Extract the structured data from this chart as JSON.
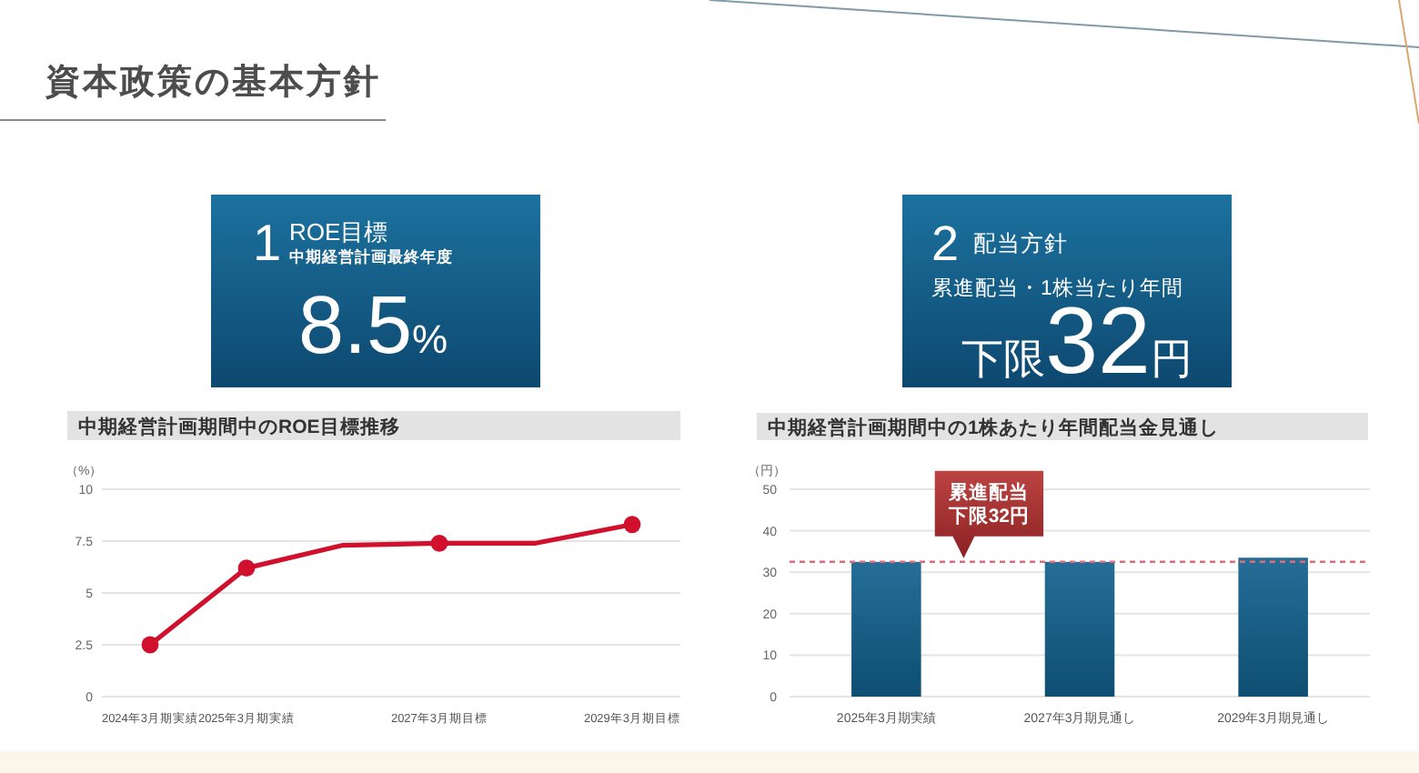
{
  "chart_data": [
    {
      "type": "other",
      "title": "資本政策の基本方針"
    },
    {
      "type": "other",
      "title": "ROE目標",
      "subtitle": "中期経営計画最終年度",
      "annotations": [
        "1",
        "8.5%"
      ]
    },
    {
      "type": "other",
      "title": "配当方針",
      "subtitle": "累進配当・1株当たり年間",
      "annotations": [
        "2",
        "下限32円"
      ]
    },
    {
      "type": "line",
      "title": "中期経営計画期間中のROE目標推移",
      "ylabel": "（%）",
      "categories": [
        "2024年3月期実績",
        "2025年3月期実績",
        null,
        "2027年3月期目標",
        null,
        "2029年3月期目標"
      ],
      "series": [
        {
          "color": "#d0102c",
          "values": [
            2.5,
            6.2,
            7.3,
            7.4,
            7.4,
            8.3
          ]
        },
        {
          "type": "scatter",
          "marker": "circle",
          "color": "#d0102c",
          "values": [
            2.5,
            6.2,
            null,
            7.4,
            null,
            8.3
          ]
        }
      ],
      "ylim": [
        0,
        10
      ],
      "yticks": [
        0,
        2.5,
        5,
        7.5,
        10
      ],
      "grid": "y"
    },
    {
      "type": "bar",
      "title": "中期経営計画期間中の1株あたり年間配当金見通し",
      "ylabel": "（円）",
      "categories": [
        "2025年3月期実績",
        "2027年3月期見通し",
        "2029年3月期見通し"
      ],
      "values": [
        32.5,
        32.5,
        33.5
      ],
      "color": "#12618e",
      "ylim": [
        0,
        50
      ],
      "yticks": [
        0,
        10,
        20,
        30,
        40,
        50
      ],
      "grid": "y",
      "ref_lines": [
        {
          "axis": "y",
          "value": 32.5,
          "label": "累進配当下限32円",
          "color": "#e36a78",
          "line_style": "dashed"
        }
      ]
    }
  ]
}
